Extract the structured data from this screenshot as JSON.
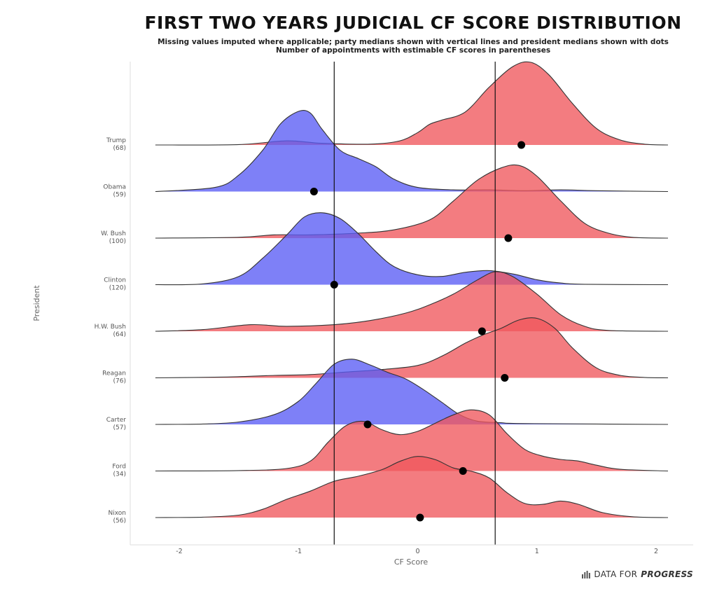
{
  "title": "FIRST TWO YEARS JUDICIAL CF SCORE DISTRIBUTION",
  "subtitle_line1": "Missing values imputed where applicable; party medians shown with vertical lines and president medians shown with dots",
  "subtitle_line2": "Number of appointments with estimable CF scores in parentheses",
  "brand": {
    "prefix": "DATA FOR",
    "emphasis": "PROGRESS"
  },
  "colors": {
    "republican": "#f0575c",
    "democrat": "#5a5cf5",
    "median_line": "#111111",
    "dot": "#000000"
  },
  "chart_data": {
    "type": "area",
    "subtype": "ridgeline",
    "xlabel": "CF Score",
    "ylabel": "President",
    "xlim": [
      -2.2,
      2.1
    ],
    "xticks": [
      -2,
      -1,
      0,
      1,
      2
    ],
    "party_medians": [
      -0.7,
      0.65
    ],
    "presidents": [
      {
        "label": "Trump",
        "count": "(68)",
        "party": "republican",
        "median": 0.87,
        "density": [
          [
            -2.2,
            0
          ],
          [
            -1.5,
            0.005
          ],
          [
            -1.1,
            0.05
          ],
          [
            -0.8,
            0.02
          ],
          [
            -0.4,
            0.01
          ],
          [
            -0.15,
            0.05
          ],
          [
            0.0,
            0.15
          ],
          [
            0.1,
            0.25
          ],
          [
            0.2,
            0.3
          ],
          [
            0.4,
            0.4
          ],
          [
            0.6,
            0.7
          ],
          [
            0.8,
            0.95
          ],
          [
            0.95,
            1.0
          ],
          [
            1.1,
            0.85
          ],
          [
            1.3,
            0.5
          ],
          [
            1.5,
            0.2
          ],
          [
            1.7,
            0.06
          ],
          [
            1.9,
            0.01
          ],
          [
            2.1,
            0
          ]
        ]
      },
      {
        "label": "Obama",
        "count": "(59)",
        "party": "democrat",
        "median": -0.87,
        "density": [
          [
            -2.2,
            0
          ],
          [
            -1.7,
            0.05
          ],
          [
            -1.5,
            0.2
          ],
          [
            -1.3,
            0.5
          ],
          [
            -1.15,
            0.82
          ],
          [
            -1.0,
            0.97
          ],
          [
            -0.9,
            0.95
          ],
          [
            -0.8,
            0.75
          ],
          [
            -0.65,
            0.5
          ],
          [
            -0.5,
            0.4
          ],
          [
            -0.35,
            0.3
          ],
          [
            -0.2,
            0.15
          ],
          [
            0.0,
            0.05
          ],
          [
            0.3,
            0.02
          ],
          [
            0.6,
            0.02
          ],
          [
            0.9,
            0.01
          ],
          [
            1.2,
            0.02
          ],
          [
            1.5,
            0.01
          ],
          [
            2.1,
            0
          ]
        ]
      },
      {
        "label": "W. Bush",
        "count": "(100)",
        "party": "republican",
        "median": 0.76,
        "density": [
          [
            -2.2,
            0
          ],
          [
            -1.5,
            0.01
          ],
          [
            -1.2,
            0.04
          ],
          [
            -0.9,
            0.04
          ],
          [
            -0.5,
            0.06
          ],
          [
            -0.2,
            0.1
          ],
          [
            0.1,
            0.22
          ],
          [
            0.3,
            0.45
          ],
          [
            0.5,
            0.7
          ],
          [
            0.7,
            0.85
          ],
          [
            0.85,
            0.88
          ],
          [
            1.0,
            0.75
          ],
          [
            1.2,
            0.45
          ],
          [
            1.4,
            0.18
          ],
          [
            1.6,
            0.06
          ],
          [
            1.8,
            0.01
          ],
          [
            2.1,
            0
          ]
        ]
      },
      {
        "label": "Clinton",
        "count": "(120)",
        "party": "democrat",
        "median": -0.7,
        "density": [
          [
            -2.2,
            0
          ],
          [
            -1.8,
            0.01
          ],
          [
            -1.5,
            0.1
          ],
          [
            -1.3,
            0.32
          ],
          [
            -1.1,
            0.6
          ],
          [
            -0.95,
            0.82
          ],
          [
            -0.8,
            0.87
          ],
          [
            -0.65,
            0.8
          ],
          [
            -0.5,
            0.62
          ],
          [
            -0.35,
            0.4
          ],
          [
            -0.2,
            0.22
          ],
          [
            0.0,
            0.12
          ],
          [
            0.2,
            0.1
          ],
          [
            0.4,
            0.15
          ],
          [
            0.6,
            0.17
          ],
          [
            0.8,
            0.13
          ],
          [
            1.0,
            0.06
          ],
          [
            1.2,
            0.02
          ],
          [
            1.4,
            0.005
          ],
          [
            2.1,
            0
          ]
        ]
      },
      {
        "label": "H.W. Bush",
        "count": "(64)",
        "party": "republican",
        "median": 0.54,
        "density": [
          [
            -2.2,
            0
          ],
          [
            -1.8,
            0.02
          ],
          [
            -1.4,
            0.08
          ],
          [
            -1.1,
            0.06
          ],
          [
            -0.7,
            0.08
          ],
          [
            -0.4,
            0.13
          ],
          [
            -0.1,
            0.22
          ],
          [
            0.1,
            0.32
          ],
          [
            0.3,
            0.45
          ],
          [
            0.5,
            0.62
          ],
          [
            0.65,
            0.72
          ],
          [
            0.8,
            0.66
          ],
          [
            1.0,
            0.45
          ],
          [
            1.2,
            0.2
          ],
          [
            1.4,
            0.06
          ],
          [
            1.6,
            0.01
          ],
          [
            2.1,
            0
          ]
        ]
      },
      {
        "label": "Reagan",
        "count": "(76)",
        "party": "republican",
        "median": 0.73,
        "density": [
          [
            -2.2,
            0
          ],
          [
            -1.6,
            0.01
          ],
          [
            -1.2,
            0.03
          ],
          [
            -0.9,
            0.04
          ],
          [
            -0.6,
            0.07
          ],
          [
            -0.3,
            0.1
          ],
          [
            0.0,
            0.15
          ],
          [
            0.2,
            0.26
          ],
          [
            0.4,
            0.42
          ],
          [
            0.55,
            0.52
          ],
          [
            0.7,
            0.6
          ],
          [
            0.85,
            0.7
          ],
          [
            1.0,
            0.72
          ],
          [
            1.15,
            0.6
          ],
          [
            1.3,
            0.36
          ],
          [
            1.5,
            0.12
          ],
          [
            1.7,
            0.03
          ],
          [
            1.9,
            0.005
          ],
          [
            2.1,
            0
          ]
        ]
      },
      {
        "label": "Carter",
        "count": "(57)",
        "party": "democrat",
        "median": -0.42,
        "density": [
          [
            -2.2,
            0
          ],
          [
            -1.8,
            0.005
          ],
          [
            -1.5,
            0.03
          ],
          [
            -1.2,
            0.12
          ],
          [
            -1.0,
            0.28
          ],
          [
            -0.85,
            0.5
          ],
          [
            -0.7,
            0.73
          ],
          [
            -0.55,
            0.79
          ],
          [
            -0.4,
            0.72
          ],
          [
            -0.25,
            0.63
          ],
          [
            -0.1,
            0.55
          ],
          [
            0.05,
            0.42
          ],
          [
            0.2,
            0.27
          ],
          [
            0.35,
            0.12
          ],
          [
            0.5,
            0.04
          ],
          [
            0.7,
            0.02
          ],
          [
            0.9,
            0.01
          ],
          [
            2.1,
            0
          ]
        ]
      },
      {
        "label": "Ford",
        "count": "(34)",
        "party": "republican",
        "median": 0.38,
        "density": [
          [
            -2.2,
            0
          ],
          [
            -1.5,
            0.005
          ],
          [
            -1.1,
            0.03
          ],
          [
            -0.9,
            0.12
          ],
          [
            -0.75,
            0.35
          ],
          [
            -0.6,
            0.55
          ],
          [
            -0.45,
            0.6
          ],
          [
            -0.3,
            0.5
          ],
          [
            -0.15,
            0.44
          ],
          [
            0.0,
            0.48
          ],
          [
            0.15,
            0.58
          ],
          [
            0.3,
            0.68
          ],
          [
            0.45,
            0.74
          ],
          [
            0.6,
            0.68
          ],
          [
            0.75,
            0.45
          ],
          [
            0.9,
            0.26
          ],
          [
            1.05,
            0.18
          ],
          [
            1.2,
            0.14
          ],
          [
            1.35,
            0.12
          ],
          [
            1.5,
            0.07
          ],
          [
            1.7,
            0.02
          ],
          [
            2.1,
            0
          ]
        ]
      },
      {
        "label": "Nixon",
        "count": "(56)",
        "party": "republican",
        "median": 0.02,
        "density": [
          [
            -2.2,
            0
          ],
          [
            -1.8,
            0.005
          ],
          [
            -1.5,
            0.03
          ],
          [
            -1.3,
            0.1
          ],
          [
            -1.1,
            0.22
          ],
          [
            -0.9,
            0.32
          ],
          [
            -0.7,
            0.44
          ],
          [
            -0.5,
            0.5
          ],
          [
            -0.3,
            0.58
          ],
          [
            -0.15,
            0.68
          ],
          [
            0.0,
            0.74
          ],
          [
            0.15,
            0.7
          ],
          [
            0.3,
            0.6
          ],
          [
            0.45,
            0.56
          ],
          [
            0.6,
            0.48
          ],
          [
            0.75,
            0.3
          ],
          [
            0.9,
            0.17
          ],
          [
            1.05,
            0.16
          ],
          [
            1.2,
            0.2
          ],
          [
            1.35,
            0.16
          ],
          [
            1.55,
            0.06
          ],
          [
            1.8,
            0.01
          ],
          [
            2.1,
            0
          ]
        ]
      }
    ]
  }
}
